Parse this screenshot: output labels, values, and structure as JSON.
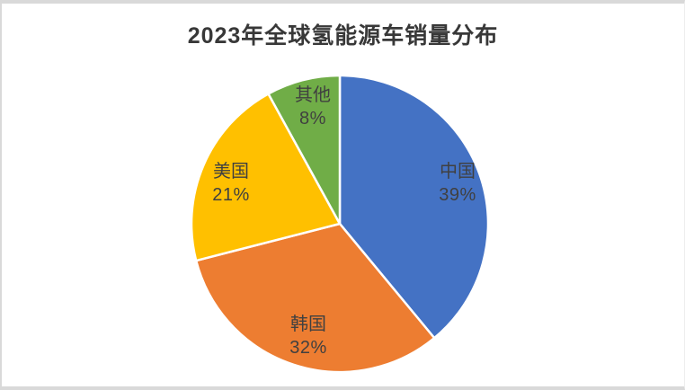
{
  "chart_data": {
    "type": "pie",
    "title": "2023年全球氢能源车销量分布",
    "start_angle_deg": 0,
    "direction": "clockwise",
    "label_color": "#404040",
    "slice_border_color": "#ffffff",
    "slices": [
      {
        "id": "china",
        "label": "中国",
        "value": 39,
        "pct": "39%",
        "color": "#4472C4"
      },
      {
        "id": "korea",
        "label": "韩国",
        "value": 32,
        "pct": "32%",
        "color": "#ED7D31"
      },
      {
        "id": "usa",
        "label": "美国",
        "value": 21,
        "pct": "21%",
        "color": "#FFC000"
      },
      {
        "id": "other",
        "label": "其他",
        "value": 8,
        "pct": "8%",
        "color": "#70AD47"
      }
    ]
  }
}
